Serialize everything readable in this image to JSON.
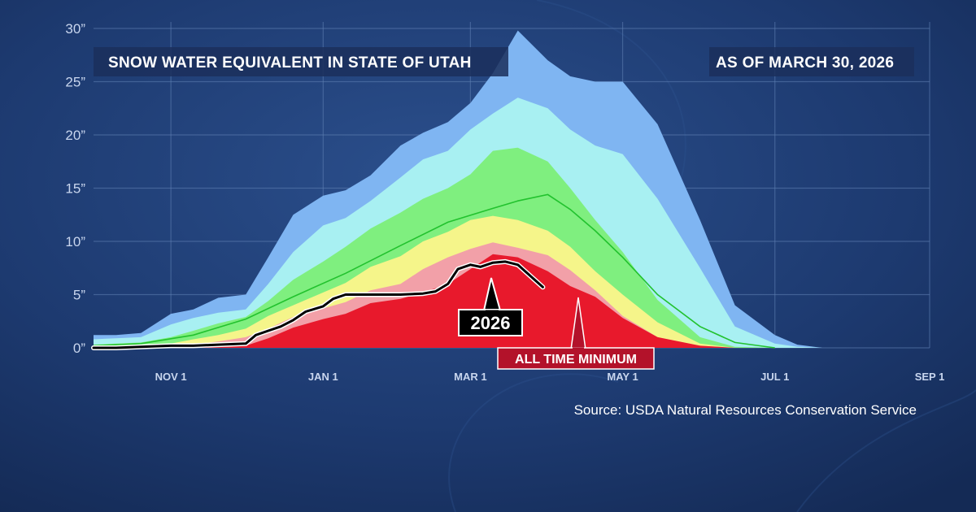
{
  "chart_data": {
    "type": "area",
    "title": "SNOW WATER EQUIVALENT IN STATE OF UTAH",
    "subtitle": "AS OF MARCH 30, 2026",
    "source": "Source:  USDA Natural Resources Conservation Service",
    "x_tick_labels": [
      "NOV 1",
      "JAN 1",
      "MAR 1",
      "MAY 1",
      "JUL 1",
      "SEP 1"
    ],
    "y_tick_labels": [
      "0”",
      "5”",
      "10”",
      "15”",
      "20”",
      "25”",
      "30”"
    ],
    "ylim": [
      0,
      30
    ],
    "xlim": [
      "2025-10-01",
      "2026-09-01"
    ],
    "grid": true,
    "colors": {
      "max_band": "#7fb5f2",
      "upper_band": "#a8f0f2",
      "middle_band": "#7fef7f",
      "lower_band": "#f5f58a",
      "low_band": "#f2a0a8",
      "minimum": "#e8192c",
      "median": "#22c22e",
      "current_year": "#000000"
    },
    "bands": [
      {
        "key": "max",
        "values": [
          [
            1.2,
            1.2,
            1.4,
            3.2,
            3.6,
            4.7,
            5.0,
            8.5,
            12.5,
            14.3,
            14.8,
            16.2,
            19.0,
            20.2,
            21.2,
            23.0,
            25.8,
            29.8,
            27.0,
            25.5,
            25.0,
            25.0,
            21.0,
            12.0,
            4.0,
            1.2,
            0.3,
            0.0
          ],
          [
            1.2,
            1.2,
            1.4,
            3.2,
            3.6,
            4.7,
            5.0,
            8.5,
            12.5,
            14.3,
            14.8,
            16.2,
            19.0,
            20.2,
            21.2,
            23.0,
            25.8,
            29.8,
            27.0,
            25.5,
            25.0,
            25.0,
            21.0,
            12.0,
            4.0,
            1.2,
            0.3,
            0.0
          ]
        ]
      },
      {
        "key": "upper",
        "values": [
          [
            0.8,
            0.9,
            1.0,
            2.2,
            2.8,
            3.3,
            3.6,
            6.0,
            9.0,
            11.5,
            12.2,
            13.8,
            16.0,
            17.7,
            18.5,
            20.5,
            22.0,
            23.5,
            22.5,
            20.5,
            19.0,
            18.2,
            14.0,
            7.5,
            2.0,
            0.4,
            0.1,
            0.0
          ],
          [
            0.8,
            0.9,
            1.0,
            2.2,
            2.8,
            3.3,
            3.6,
            6.0,
            9.0,
            11.5,
            12.2,
            13.8,
            16.0,
            17.7,
            18.5,
            20.5,
            22.0,
            23.5,
            22.5,
            20.5,
            19.0,
            18.2,
            14.0,
            7.5,
            2.0,
            0.4,
            0.1,
            0.0
          ]
        ]
      },
      {
        "key": "middle",
        "values": [
          [
            0.3,
            0.4,
            0.5,
            1.0,
            1.6,
            2.3,
            2.9,
            4.4,
            6.4,
            8.1,
            9.5,
            11.2,
            12.7,
            14.0,
            15.0,
            16.3,
            18.5,
            18.8,
            17.5,
            15.0,
            12.0,
            9.0,
            4.5,
            1.0,
            0.1,
            0.0,
            0.0,
            0.0
          ],
          [
            0.3,
            0.4,
            0.5,
            1.0,
            1.6,
            2.3,
            2.9,
            4.4,
            6.4,
            8.1,
            9.5,
            11.2,
            12.7,
            14.0,
            15.0,
            16.3,
            18.5,
            18.8,
            17.5,
            15.0,
            12.0,
            9.0,
            4.5,
            1.0,
            0.1,
            0.0,
            0.0,
            0.0
          ]
        ]
      },
      {
        "key": "lower",
        "values": [
          [
            0.1,
            0.2,
            0.2,
            0.4,
            0.8,
            1.2,
            1.8,
            3.0,
            4.0,
            5.2,
            6.1,
            7.6,
            8.6,
            10.0,
            10.9,
            12.0,
            12.4,
            12.0,
            11.0,
            9.5,
            7.2,
            5.0,
            2.4,
            0.4,
            0.0,
            0.0,
            0.0,
            0.0
          ],
          [
            0.1,
            0.2,
            0.2,
            0.4,
            0.8,
            1.2,
            1.8,
            3.0,
            4.0,
            5.2,
            6.1,
            7.6,
            8.6,
            10.0,
            10.9,
            12.0,
            12.4,
            12.0,
            11.0,
            9.5,
            7.2,
            5.0,
            2.4,
            0.4,
            0.0,
            0.0,
            0.0,
            0.0
          ]
        ]
      },
      {
        "key": "low",
        "values": [
          [
            0.0,
            0.1,
            0.1,
            0.2,
            0.3,
            0.6,
            1.0,
            1.8,
            2.9,
            3.7,
            4.3,
            5.4,
            6.0,
            7.4,
            8.5,
            9.3,
            9.9,
            9.4,
            8.7,
            7.3,
            5.4,
            3.0,
            1.0,
            0.2,
            0.0,
            0.0,
            0.0,
            0.0
          ],
          [
            0.0,
            0.1,
            0.1,
            0.2,
            0.3,
            0.6,
            1.0,
            1.8,
            2.9,
            3.7,
            4.3,
            5.4,
            6.0,
            7.4,
            8.5,
            9.3,
            9.9,
            9.4,
            8.7,
            7.3,
            5.4,
            3.0,
            1.0,
            0.2,
            0.0,
            0.0,
            0.0,
            0.0
          ]
        ]
      },
      {
        "key": "minimum",
        "values": [
          [
            0.0,
            0.0,
            0.0,
            0.0,
            0.0,
            0.1,
            0.2,
            0.9,
            1.9,
            2.7,
            3.2,
            4.2,
            4.6,
            5.2,
            6.0,
            7.4,
            8.8,
            8.5,
            7.2,
            5.8,
            4.8,
            2.8,
            1.0,
            0.2,
            0.0,
            0.0,
            0.0,
            0.0
          ],
          [
            0.0,
            0.0,
            0.0,
            0.0,
            0.0,
            0.1,
            0.2,
            0.9,
            1.9,
            2.7,
            3.2,
            4.2,
            4.6,
            5.2,
            6.0,
            7.4,
            8.8,
            8.5,
            7.2,
            5.8,
            4.8,
            2.8,
            1.0,
            0.2,
            0.0,
            0.0,
            0.0,
            0.0
          ]
        ]
      }
    ],
    "x_dates": [
      "2025-10-01",
      "2025-10-10",
      "2025-10-20",
      "2025-11-01",
      "2025-11-10",
      "2025-11-20",
      "2025-12-01",
      "2025-12-10",
      "2025-12-20",
      "2026-01-01",
      "2026-01-10",
      "2026-01-20",
      "2026-02-01",
      "2026-02-10",
      "2026-02-20",
      "2026-03-01",
      "2026-03-10",
      "2026-03-20",
      "2026-04-01",
      "2026-04-10",
      "2026-04-20",
      "2026-05-01",
      "2026-05-15",
      "2026-06-01",
      "2026-06-15",
      "2026-07-01",
      "2026-07-10",
      "2026-07-20"
    ],
    "median": {
      "x": [
        "2025-10-01",
        "2025-10-20",
        "2025-11-10",
        "2025-12-01",
        "2025-12-20",
        "2026-01-10",
        "2026-02-01",
        "2026-02-20",
        "2026-03-10",
        "2026-03-20",
        "2026-04-01",
        "2026-04-10",
        "2026-04-20",
        "2026-05-01",
        "2026-05-15",
        "2026-06-01",
        "2026-06-15",
        "2026-07-01"
      ],
      "values": [
        0.2,
        0.4,
        1.2,
        2.7,
        4.8,
        7.0,
        9.6,
        11.8,
        13.1,
        13.8,
        14.4,
        13.0,
        11.0,
        8.5,
        5.0,
        2.0,
        0.5,
        0.0
      ]
    },
    "current_year": {
      "name": "2026",
      "x": [
        "2025-10-01",
        "2025-10-10",
        "2025-10-20",
        "2025-11-01",
        "2025-11-10",
        "2025-11-20",
        "2025-12-01",
        "2025-12-05",
        "2025-12-10",
        "2025-12-15",
        "2025-12-20",
        "2025-12-25",
        "2026-01-01",
        "2026-01-05",
        "2026-01-10",
        "2026-01-20",
        "2026-02-01",
        "2026-02-10",
        "2026-02-15",
        "2026-02-20",
        "2026-02-24",
        "2026-03-01",
        "2026-03-05",
        "2026-03-10",
        "2026-03-15",
        "2026-03-20",
        "2026-03-30"
      ],
      "values": [
        0.0,
        0.0,
        0.1,
        0.2,
        0.2,
        0.3,
        0.4,
        1.2,
        1.6,
        2.0,
        2.6,
        3.4,
        3.9,
        4.6,
        5.0,
        5.0,
        5.0,
        5.1,
        5.3,
        6.0,
        7.4,
        7.8,
        7.6,
        8.0,
        8.1,
        7.8,
        5.7
      ]
    },
    "annotations": [
      {
        "key": "current",
        "label": "2026"
      },
      {
        "key": "minimum",
        "label": "ALL TIME MINIMUM"
      }
    ]
  }
}
